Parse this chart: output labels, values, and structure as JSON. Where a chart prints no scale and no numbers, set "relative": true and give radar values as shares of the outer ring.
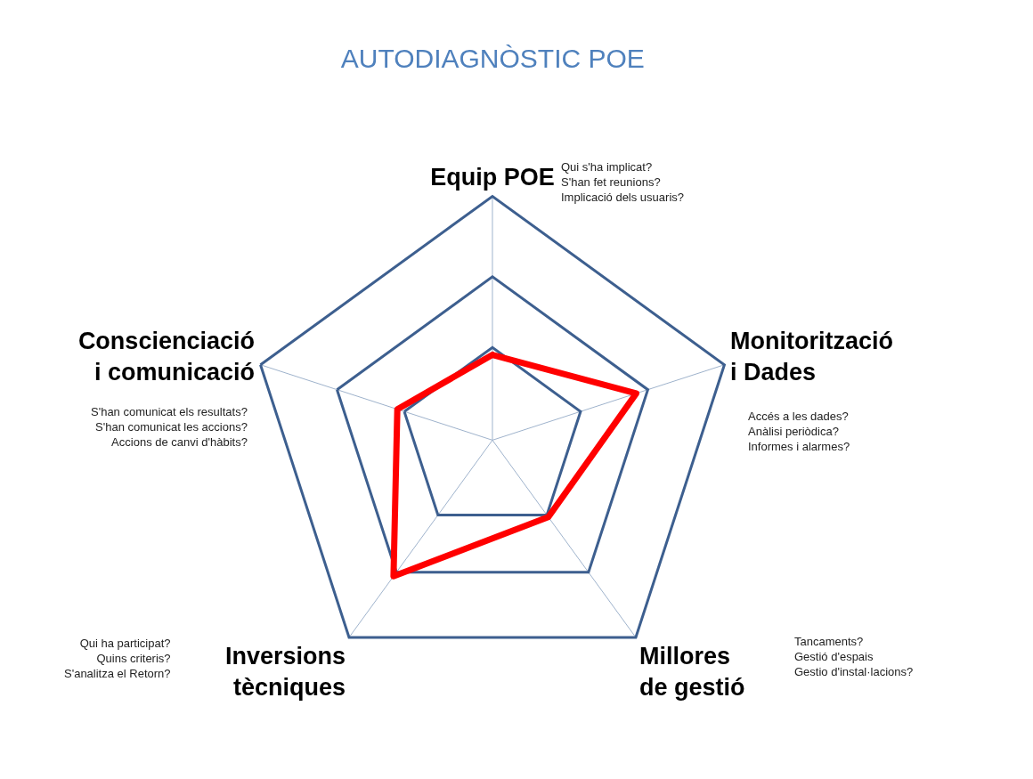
{
  "chart_data": {
    "type": "radar",
    "title": "AUTODIAGNÒSTIC POE",
    "categories": [
      "Equip POE",
      "Monitorització\ni Dades",
      "Millores\nde gestió",
      "Inversions\ntècniques",
      "Conscienciació\ni comunicació"
    ],
    "series": [
      {
        "color": "#ff0000",
        "values": [
          0.35,
          0.62,
          0.39,
          0.69,
          0.41
        ]
      }
    ],
    "relative": true,
    "grid": true,
    "marker": "none",
    "line_style": "solid",
    "annotations": [
      "Qui s'ha implicat?\nS'han fet reunions?\nImplicació dels usuaris?",
      "Accés a les dades?\nAnàlisi periòdica?\nInformes i alarmes?",
      "Tancaments?\nGestió d'espais\nGestio d'instal·lacions?",
      "Qui ha participat?\nQuins criteris?\nS'analitza el Retorn?",
      "S'han comunicat els resultats?\nS'han comunicat les accions?\nAccions de canvi d'hàbits?"
    ]
  }
}
